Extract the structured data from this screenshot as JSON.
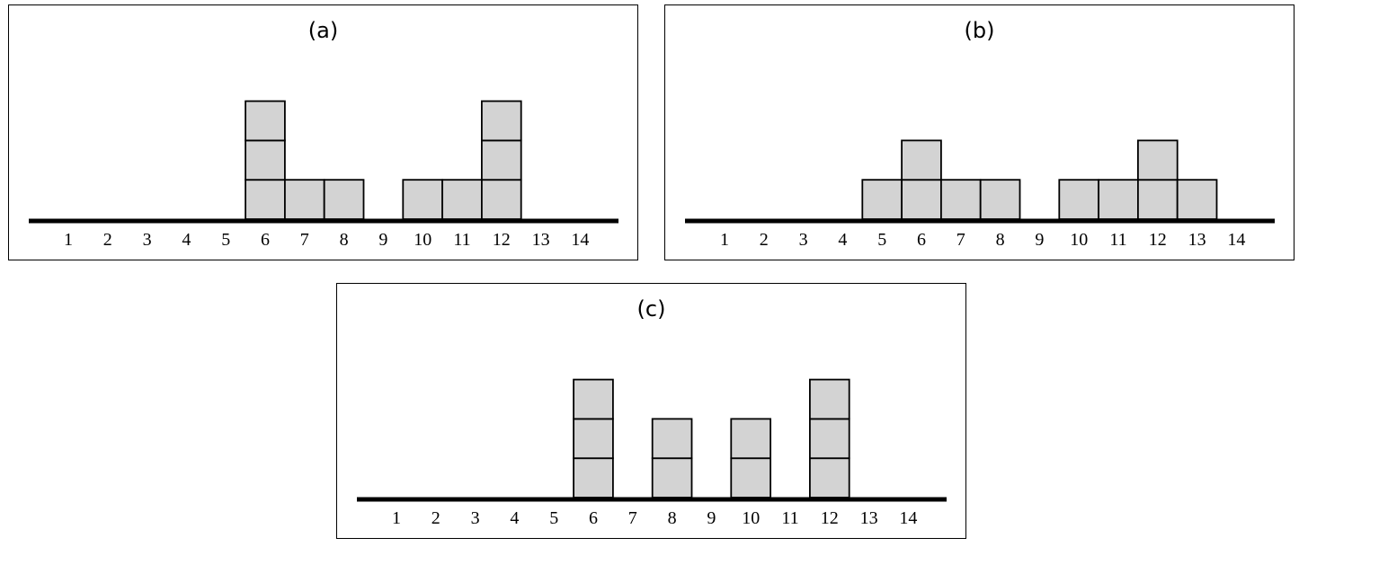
{
  "chart_data": [
    {
      "type": "bar",
      "title": "(a)",
      "categories": [
        "1",
        "2",
        "3",
        "4",
        "5",
        "6",
        "7",
        "8",
        "9",
        "10",
        "11",
        "12",
        "13",
        "14"
      ],
      "values": [
        0,
        0,
        0,
        0,
        0,
        3,
        1,
        1,
        0,
        1,
        1,
        3,
        0,
        0
      ],
      "ylim": [
        0,
        3
      ],
      "grid": false,
      "bar_color": "#d3d3d3"
    },
    {
      "type": "bar",
      "title": "(b)",
      "categories": [
        "1",
        "2",
        "3",
        "4",
        "5",
        "6",
        "7",
        "8",
        "9",
        "10",
        "11",
        "12",
        "13",
        "14"
      ],
      "values": [
        0,
        0,
        0,
        0,
        1,
        2,
        1,
        1,
        0,
        1,
        1,
        2,
        1,
        0
      ],
      "ylim": [
        0,
        3
      ],
      "grid": false,
      "bar_color": "#d3d3d3"
    },
    {
      "type": "bar",
      "title": "(c)",
      "categories": [
        "1",
        "2",
        "3",
        "4",
        "5",
        "6",
        "7",
        "8",
        "9",
        "10",
        "11",
        "12",
        "13",
        "14"
      ],
      "values": [
        0,
        0,
        0,
        0,
        0,
        3,
        0,
        2,
        0,
        2,
        0,
        3,
        0,
        0
      ],
      "ylim": [
        0,
        3
      ],
      "grid": false,
      "bar_color": "#d3d3d3"
    }
  ]
}
